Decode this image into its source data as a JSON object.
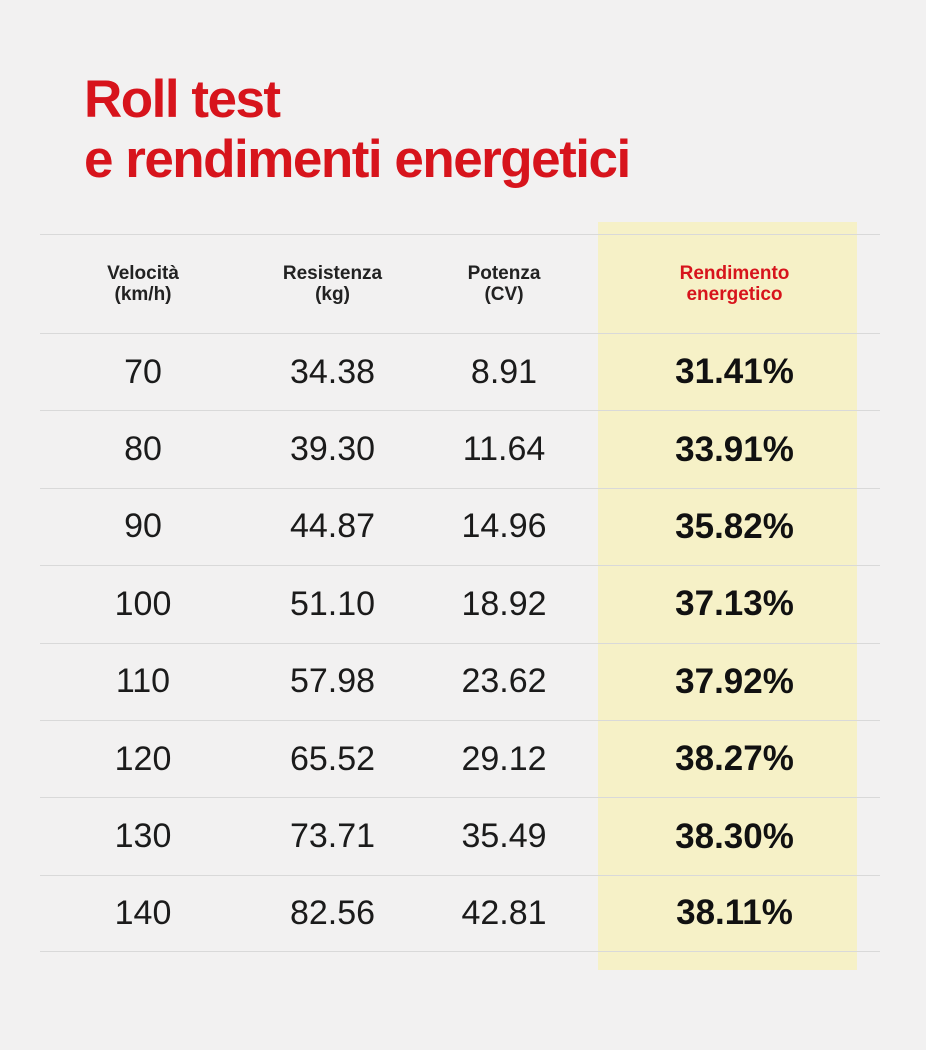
{
  "title": {
    "line1": "Roll test",
    "line2": "e rendimenti energetici"
  },
  "colors": {
    "accent": "#d7141c",
    "highlight": "#f6f1c7",
    "background": "#f2f1f1"
  },
  "chart_data": {
    "type": "table",
    "title": "Roll test e rendimenti energetici",
    "columns": [
      "Velocità\n(km/h)",
      "Resistenza\n(kg)",
      "Potenza\n(CV)",
      "Rendimento\nenergetico"
    ],
    "highlighted_column": 3,
    "rows": [
      [
        "70",
        "34.38",
        "8.91",
        "31.41%"
      ],
      [
        "80",
        "39.30",
        "11.64",
        "33.91%"
      ],
      [
        "90",
        "44.87",
        "14.96",
        "35.82%"
      ],
      [
        "100",
        "51.10",
        "18.92",
        "37.13%"
      ],
      [
        "110",
        "57.98",
        "23.62",
        "37.92%"
      ],
      [
        "120",
        "65.52",
        "29.12",
        "38.27%"
      ],
      [
        "130",
        "73.71",
        "35.49",
        "38.30%"
      ],
      [
        "140",
        "82.56",
        "42.81",
        "38.11%"
      ]
    ]
  }
}
